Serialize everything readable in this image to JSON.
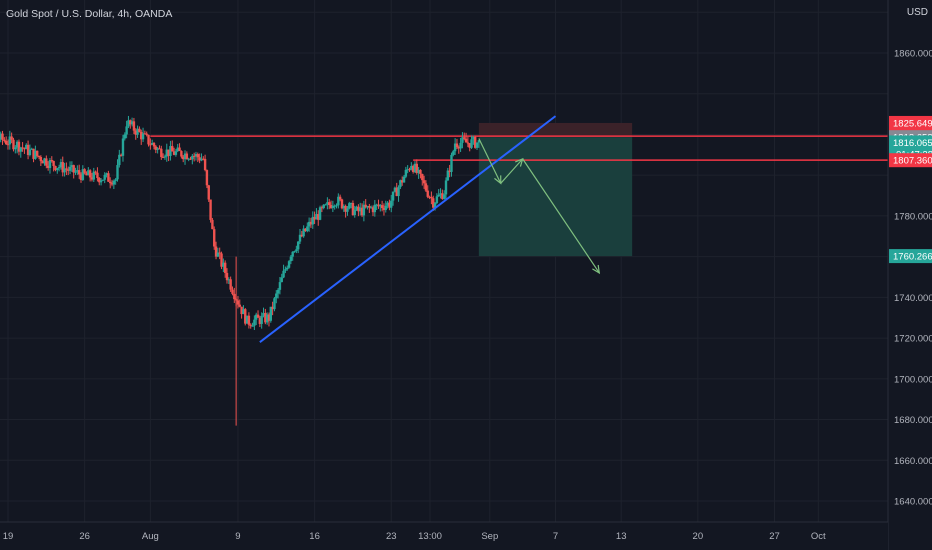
{
  "header": {
    "symbol_title": "Gold Spot / U.S. Dollar, 4h, OANDA",
    "currency": "USD"
  },
  "colors": {
    "background": "#131722",
    "grid": "#1e222d",
    "up": "#26a69a",
    "down": "#ef5350",
    "trendline": "#2962ff",
    "level_line": "#f23645",
    "target_zone": "#1a3f3d",
    "stop_zone": "#3b2229",
    "arrow": "#7fbf7f"
  },
  "chart_data": {
    "type": "candlestick",
    "symbol": "XAUUSD",
    "interval": "4h",
    "ylim": [
      1630,
      1890
    ],
    "y_ticks": [
      1640,
      1660,
      1680,
      1700,
      1720,
      1740,
      1760,
      1780,
      1860
    ],
    "x_ticks": [
      {
        "label": "19",
        "date": "2021-07-19"
      },
      {
        "label": "26",
        "date": "2021-07-26"
      },
      {
        "label": "Aug",
        "date": "2021-08-01"
      },
      {
        "label": "9",
        "date": "2021-08-09"
      },
      {
        "label": "16",
        "date": "2021-08-16"
      },
      {
        "label": "23",
        "date": "2021-08-23"
      },
      {
        "label": "13:00",
        "date": "2021-08-26T13:00"
      },
      {
        "label": "Sep",
        "date": "2021-09-01"
      },
      {
        "label": "7",
        "date": "2021-09-07"
      },
      {
        "label": "13",
        "date": "2021-09-13"
      },
      {
        "label": "20",
        "date": "2021-09-20"
      },
      {
        "label": "27",
        "date": "2021-09-27"
      },
      {
        "label": "Oct",
        "date": "2021-10-01"
      }
    ],
    "price_tags": [
      {
        "label": "1825.649",
        "value": 1825.649,
        "color": "#f23645"
      },
      {
        "label": "1819.170",
        "value": 1819.17,
        "color": "#f23645"
      },
      {
        "label": "1818.658",
        "value": 1818.658,
        "color": "#868993"
      },
      {
        "label": "1816.065",
        "value": 1816.065,
        "color": "#26a69a",
        "countdown": "01:47:28"
      },
      {
        "label": "1807.360",
        "value": 1807.36,
        "color": "#f23645"
      },
      {
        "label": "1760.266",
        "value": 1760.266,
        "color": "#26a69a"
      }
    ],
    "horizontal_levels": [
      {
        "value": 1819.2,
        "from": "2021-08-01",
        "to": "end"
      },
      {
        "value": 1807.4,
        "from": "2021-08-25",
        "to": "end"
      }
    ],
    "trendline": {
      "from": {
        "date": "2021-08-11",
        "price": 1718
      },
      "to": {
        "date": "2021-09-07",
        "price": 1829
      }
    },
    "position_box": {
      "from": "2021-08-31",
      "to": "2021-09-14",
      "entry": 1818.658,
      "stop": 1825.649,
      "target": 1760.266
    },
    "arrows": [
      {
        "from": {
          "date": "2021-08-31",
          "price": 1818
        },
        "to": {
          "date": "2021-09-02",
          "price": 1796
        }
      },
      {
        "from": {
          "date": "2021-09-02",
          "price": 1796
        },
        "to": {
          "date": "2021-09-04",
          "price": 1808
        }
      },
      {
        "from": {
          "date": "2021-09-04",
          "price": 1808
        },
        "to": {
          "date": "2021-09-11",
          "price": 1752
        }
      }
    ],
    "key_points": [
      {
        "date": "2021-07-15",
        "price": 1824
      },
      {
        "date": "2021-07-20",
        "price": 1815
      },
      {
        "date": "2021-07-23",
        "price": 1806
      },
      {
        "date": "2021-07-26",
        "price": 1800
      },
      {
        "date": "2021-07-29",
        "price": 1798
      },
      {
        "date": "2021-07-30",
        "price": 1826
      },
      {
        "date": "2021-08-02",
        "price": 1812
      },
      {
        "date": "2021-08-05",
        "price": 1810
      },
      {
        "date": "2021-08-06",
        "price": 1808
      },
      {
        "date": "2021-08-07",
        "price": 1765
      },
      {
        "date": "2021-08-09",
        "price": 1740
      },
      {
        "date": "2021-08-10",
        "price": 1728
      },
      {
        "date": "2021-08-12",
        "price": 1730
      },
      {
        "date": "2021-08-14",
        "price": 1762
      },
      {
        "date": "2021-08-16",
        "price": 1778
      },
      {
        "date": "2021-08-18",
        "price": 1788
      },
      {
        "date": "2021-08-20",
        "price": 1782
      },
      {
        "date": "2021-08-23",
        "price": 1786
      },
      {
        "date": "2021-08-25",
        "price": 1806
      },
      {
        "date": "2021-08-27",
        "price": 1787
      },
      {
        "date": "2021-08-28",
        "price": 1792
      },
      {
        "date": "2021-08-29",
        "price": 1816
      },
      {
        "date": "2021-08-31",
        "price": 1816
      }
    ]
  }
}
